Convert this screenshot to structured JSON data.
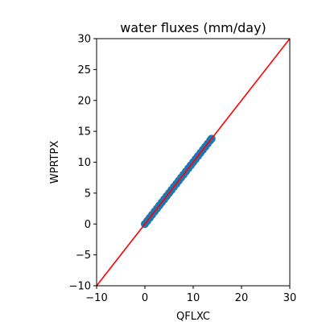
{
  "chart_data": {
    "type": "scatter",
    "title": "water fluxes (mm/day)",
    "xlabel": "QFLXC",
    "ylabel": "WPRTPX",
    "xlim": [
      -10,
      30
    ],
    "ylim": [
      -10,
      30
    ],
    "xticks": [
      -10,
      0,
      10,
      20,
      30
    ],
    "yticks": [
      -10,
      -5,
      0,
      5,
      10,
      15,
      20,
      25,
      30
    ],
    "grid": false,
    "points": {
      "color": "#1f77b4",
      "x": [
        0,
        0.5,
        1,
        1.5,
        2,
        2.5,
        3,
        3.5,
        4,
        4.5,
        5,
        5.5,
        6,
        6.5,
        7,
        7.5,
        8,
        8.5,
        9,
        9.5,
        10,
        10.5,
        11,
        11.5,
        12,
        12.5,
        13,
        13.5,
        13.8
      ],
      "y": [
        0,
        0.5,
        1,
        1.5,
        2,
        2.5,
        3,
        3.5,
        4,
        4.5,
        5,
        5.5,
        6,
        6.5,
        7,
        7.5,
        8,
        8.5,
        9,
        9.5,
        10,
        10.5,
        11,
        11.5,
        12,
        12.5,
        13,
        13.5,
        13.8
      ]
    },
    "reference_line": {
      "color": "#ff0000",
      "x": [
        -10,
        30
      ],
      "y": [
        -10,
        30
      ]
    }
  }
}
